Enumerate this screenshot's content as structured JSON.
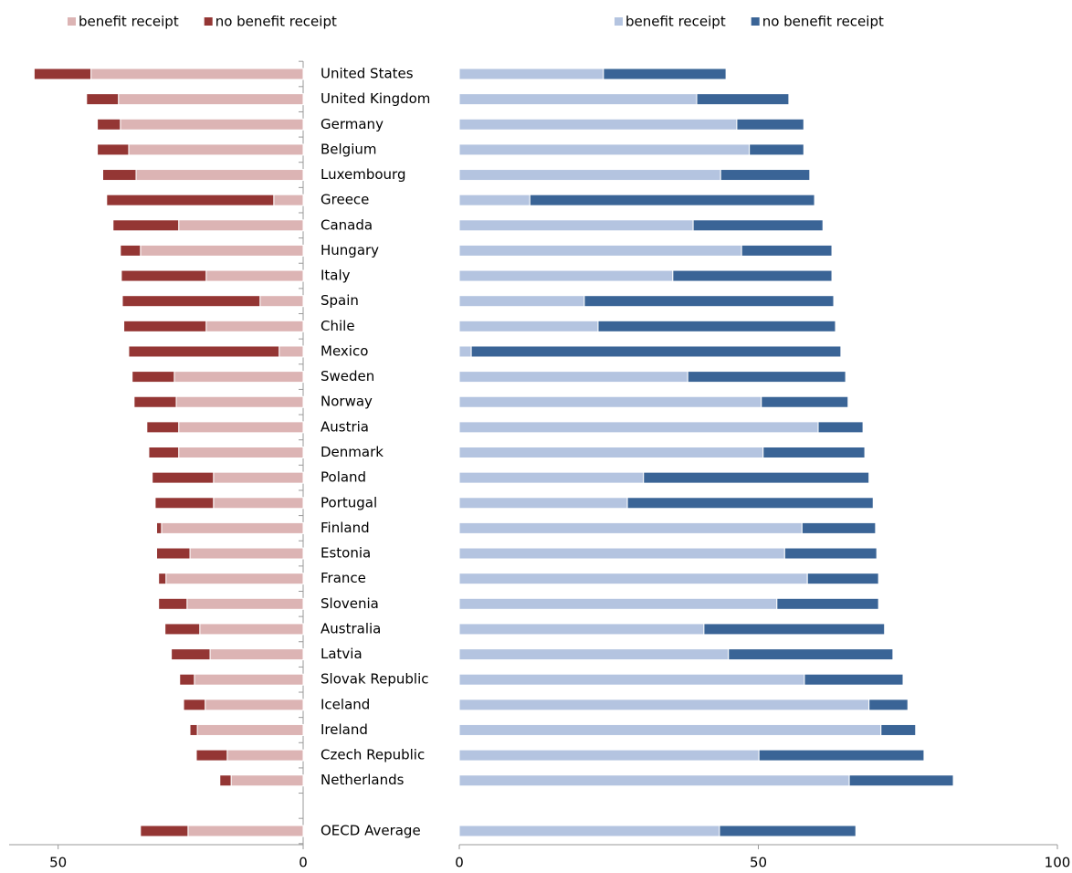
{
  "chart_data": [
    {
      "type": "bar",
      "orientation": "horizontal",
      "stacked": true,
      "categories": [
        "United States",
        "United Kingdom",
        "Germany",
        "Belgium",
        "Luxembourg",
        "Greece",
        "Canada",
        "Hungary",
        "Italy",
        "Spain",
        "Chile",
        "Mexico",
        "Sweden",
        "Norway",
        "Austria",
        "Denmark",
        "Poland",
        "Portugal",
        "Finland",
        "Estonia",
        "France",
        "Slovenia",
        "Australia",
        "Latvia",
        "Slovak Republic",
        "Iceland",
        "Ireland",
        "Czech Republic",
        "Netherlands",
        null,
        "OECD Average"
      ],
      "series": [
        {
          "name": "benefit receipt",
          "color": "#dcb4b4",
          "values": [
            43.3,
            37.7,
            37.3,
            35.6,
            34.1,
            6.0,
            25.4,
            33.2,
            19.8,
            8.8,
            19.8,
            4.9,
            26.3,
            25.9,
            25.4,
            25.4,
            18.3,
            18.3,
            28.9,
            23.1,
            28.0,
            23.7,
            21.1,
            19.0,
            22.2,
            20.0,
            21.6,
            15.5,
            14.7,
            null,
            23.5
          ]
        },
        {
          "name": "no benefit receipt",
          "color": "#943634",
          "values": [
            11.6,
            6.5,
            4.7,
            6.4,
            6.8,
            34.1,
            13.4,
            4.1,
            17.3,
            28.1,
            16.8,
            30.7,
            8.6,
            8.6,
            6.5,
            6.1,
            12.5,
            11.9,
            1.0,
            6.8,
            1.5,
            5.8,
            7.1,
            7.9,
            3.0,
            4.4,
            1.5,
            6.3,
            2.3,
            null,
            9.7
          ]
        }
      ],
      "xlim": [
        60,
        0
      ],
      "xticks": [
        50,
        0
      ]
    },
    {
      "type": "bar",
      "orientation": "horizontal",
      "stacked": true,
      "series": [
        {
          "name": "benefit receipt",
          "color": "#b4c4e0",
          "values": [
            24.1,
            39.7,
            46.4,
            48.5,
            43.7,
            11.8,
            39.1,
            47.2,
            35.7,
            20.9,
            23.2,
            2.0,
            38.2,
            50.5,
            60.0,
            50.8,
            30.8,
            28.1,
            57.3,
            54.4,
            58.2,
            53.1,
            40.9,
            45.0,
            57.7,
            68.5,
            70.5,
            50.1,
            65.2,
            null,
            43.5
          ]
        },
        {
          "name": "no benefit receipt",
          "color": "#3a6496",
          "values": [
            20.5,
            15.4,
            11.2,
            9.1,
            14.9,
            47.6,
            21.7,
            15.1,
            26.6,
            41.7,
            39.7,
            61.8,
            26.4,
            14.5,
            7.5,
            17.0,
            37.7,
            41.1,
            12.3,
            15.4,
            11.9,
            17.0,
            30.2,
            27.5,
            16.5,
            6.5,
            5.8,
            27.6,
            17.4,
            null,
            22.8
          ]
        }
      ],
      "xlim": [
        0,
        100
      ],
      "xticks": [
        0,
        50,
        100
      ]
    }
  ]
}
